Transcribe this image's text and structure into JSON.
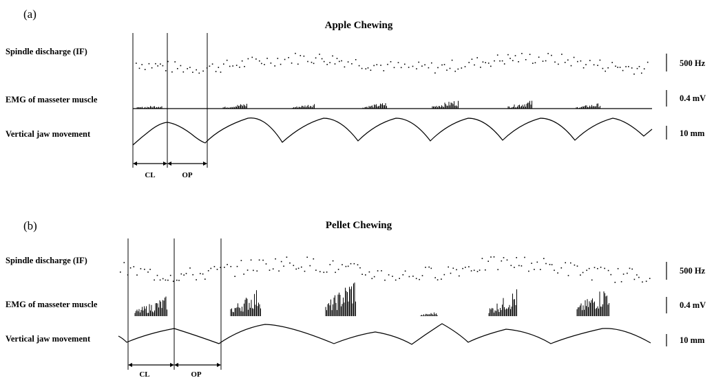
{
  "panels": [
    {
      "label": "(a)",
      "title": "Apple Chewing",
      "rows": [
        {
          "label": "Spindle discharge (IF)",
          "scale": "500 Hz"
        },
        {
          "label": "EMG  of masseter muscle",
          "scale": "0.4 mV"
        },
        {
          "label": "Vertical jaw movement",
          "scale": "10 mm"
        }
      ],
      "phases": [
        "CL",
        "OP"
      ]
    },
    {
      "label": "(b)",
      "title": "Pellet Chewing",
      "rows": [
        {
          "label": "Spindle discharge (IF)",
          "scale": "500 Hz"
        },
        {
          "label": "EMG  of masseter muscle",
          "scale": "0.4 mV"
        },
        {
          "label": "Vertical jaw movement",
          "scale": "10 mm"
        }
      ],
      "phases": [
        "CL",
        "OP"
      ]
    }
  ]
}
